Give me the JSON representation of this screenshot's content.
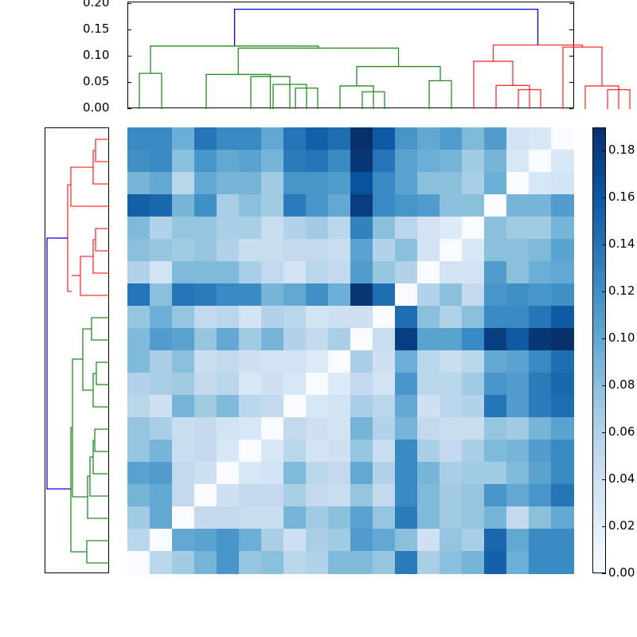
{
  "chart_data": [
    {
      "type": "heatmap",
      "title": "",
      "xlabel": "",
      "ylabel": "",
      "rows": 20,
      "cols": 20,
      "colormap": "Blues",
      "vmin": 0.0,
      "vmax": 0.19,
      "values": [
        [
          0.125,
          0.125,
          0.095,
          0.14,
          0.125,
          0.125,
          0.1,
          0.14,
          0.155,
          0.145,
          0.19,
          0.16,
          0.115,
          0.1,
          0.11,
          0.085,
          0.11,
          0.035,
          0.03,
          0.0
        ],
        [
          0.12,
          0.125,
          0.08,
          0.115,
          0.1,
          0.105,
          0.09,
          0.135,
          0.14,
          0.125,
          0.185,
          0.14,
          0.105,
          0.095,
          0.09,
          0.07,
          0.09,
          0.03,
          0.0,
          0.03
        ],
        [
          0.09,
          0.1,
          0.055,
          0.1,
          0.09,
          0.09,
          0.07,
          0.115,
          0.115,
          0.11,
          0.165,
          0.125,
          0.105,
          0.08,
          0.08,
          0.065,
          0.095,
          0.0,
          0.03,
          0.035
        ],
        [
          0.155,
          0.15,
          0.09,
          0.12,
          0.065,
          0.08,
          0.07,
          0.135,
          0.115,
          0.1,
          0.18,
          0.125,
          0.115,
          0.11,
          0.08,
          0.08,
          0.0,
          0.09,
          0.09,
          0.11
        ],
        [
          0.085,
          0.06,
          0.075,
          0.075,
          0.065,
          0.065,
          0.045,
          0.06,
          0.07,
          0.055,
          0.13,
          0.08,
          0.055,
          0.035,
          0.025,
          0.0,
          0.08,
          0.07,
          0.07,
          0.09
        ],
        [
          0.08,
          0.075,
          0.07,
          0.075,
          0.06,
          0.045,
          0.045,
          0.05,
          0.05,
          0.045,
          0.105,
          0.06,
          0.08,
          0.035,
          0.0,
          0.03,
          0.08,
          0.08,
          0.085,
          0.105
        ],
        [
          0.06,
          0.035,
          0.085,
          0.085,
          0.085,
          0.065,
          0.05,
          0.035,
          0.055,
          0.05,
          0.11,
          0.075,
          0.06,
          0.0,
          0.035,
          0.035,
          0.11,
          0.08,
          0.095,
          0.1
        ],
        [
          0.14,
          0.08,
          0.14,
          0.135,
          0.125,
          0.125,
          0.09,
          0.1,
          0.12,
          0.095,
          0.185,
          0.145,
          0.0,
          0.06,
          0.08,
          0.05,
          0.115,
          0.12,
          0.115,
          0.12
        ],
        [
          0.075,
          0.095,
          0.075,
          0.05,
          0.055,
          0.035,
          0.06,
          0.055,
          0.035,
          0.04,
          0.04,
          0.0,
          0.145,
          0.08,
          0.06,
          0.08,
          0.125,
          0.125,
          0.14,
          0.16
        ],
        [
          0.085,
          0.11,
          0.105,
          0.075,
          0.1,
          0.07,
          0.09,
          0.06,
          0.05,
          0.065,
          0.0,
          0.045,
          0.18,
          0.105,
          0.105,
          0.125,
          0.18,
          0.16,
          0.185,
          0.19
        ],
        [
          0.085,
          0.065,
          0.08,
          0.045,
          0.05,
          0.04,
          0.035,
          0.035,
          0.025,
          0.0,
          0.065,
          0.04,
          0.095,
          0.055,
          0.045,
          0.055,
          0.1,
          0.105,
          0.125,
          0.145
        ],
        [
          0.06,
          0.065,
          0.07,
          0.05,
          0.055,
          0.03,
          0.04,
          0.03,
          0.0,
          0.025,
          0.05,
          0.035,
          0.115,
          0.055,
          0.055,
          0.07,
          0.115,
          0.11,
          0.135,
          0.15
        ],
        [
          0.055,
          0.04,
          0.09,
          0.07,
          0.085,
          0.055,
          0.05,
          0.0,
          0.03,
          0.035,
          0.065,
          0.055,
          0.1,
          0.04,
          0.055,
          0.06,
          0.14,
          0.11,
          0.135,
          0.145
        ],
        [
          0.075,
          0.065,
          0.045,
          0.05,
          0.035,
          0.03,
          0.0,
          0.05,
          0.04,
          0.035,
          0.09,
          0.06,
          0.09,
          0.05,
          0.045,
          0.045,
          0.075,
          0.07,
          0.09,
          0.105
        ],
        [
          0.075,
          0.09,
          0.045,
          0.05,
          0.03,
          0.0,
          0.03,
          0.055,
          0.035,
          0.04,
          0.075,
          0.045,
          0.125,
          0.065,
          0.05,
          0.065,
          0.085,
          0.09,
          0.11,
          0.125
        ],
        [
          0.105,
          0.11,
          0.05,
          0.04,
          0.0,
          0.03,
          0.035,
          0.085,
          0.055,
          0.05,
          0.1,
          0.06,
          0.125,
          0.09,
          0.065,
          0.07,
          0.07,
          0.085,
          0.105,
          0.125
        ],
        [
          0.09,
          0.1,
          0.05,
          0.0,
          0.04,
          0.05,
          0.05,
          0.065,
          0.05,
          0.045,
          0.075,
          0.05,
          0.125,
          0.085,
          0.07,
          0.075,
          0.115,
          0.1,
          0.115,
          0.14
        ],
        [
          0.07,
          0.1,
          0.0,
          0.05,
          0.05,
          0.045,
          0.045,
          0.09,
          0.07,
          0.08,
          0.105,
          0.075,
          0.135,
          0.085,
          0.07,
          0.075,
          0.09,
          0.05,
          0.08,
          0.1
        ],
        [
          0.055,
          0.0,
          0.1,
          0.105,
          0.115,
          0.095,
          0.065,
          0.04,
          0.065,
          0.07,
          0.11,
          0.1,
          0.08,
          0.04,
          0.075,
          0.065,
          0.15,
          0.1,
          0.125,
          0.125
        ],
        [
          0.0,
          0.055,
          0.07,
          0.09,
          0.115,
          0.075,
          0.08,
          0.055,
          0.06,
          0.085,
          0.085,
          0.075,
          0.135,
          0.065,
          0.08,
          0.09,
          0.155,
          0.095,
          0.125,
          0.125
        ]
      ],
      "colorbar": {
        "ticks": [
          "0.00",
          "0.02",
          "0.04",
          "0.06",
          "0.08",
          "0.10",
          "0.12",
          "0.14",
          "0.16",
          "0.18"
        ],
        "range": [
          0.0,
          0.19
        ]
      }
    },
    {
      "type": "dendrogram",
      "orientation": "top",
      "ylim": [
        0.0,
        0.2
      ],
      "yticks": [
        "0.00",
        "0.05",
        "0.10",
        "0.15",
        "0.20"
      ],
      "leaves": 20,
      "clusters": [
        {
          "color": "#008000",
          "leaves": 12
        },
        {
          "color": "#ff0000",
          "leaves": 8
        }
      ],
      "root_height": 0.19,
      "root_color": "#0000ff",
      "links": [
        {
          "color": "green",
          "x": [
            0,
            0,
            1,
            1
          ],
          "y": [
            0,
            0.068,
            0.068,
            0
          ]
        },
        {
          "color": "green",
          "x": [
            7,
            7,
            8,
            8
          ],
          "y": [
            0,
            0.04,
            0.04,
            0
          ]
        },
        {
          "color": "green",
          "x": [
            6,
            6,
            7.5,
            7.5
          ],
          "y": [
            0,
            0.047,
            0.047,
            0
          ]
        },
        {
          "color": "green",
          "x": [
            5,
            5,
            6.75,
            6.75
          ],
          "y": [
            0,
            0.062,
            0.062,
            0
          ]
        },
        {
          "color": "green",
          "x": [
            3,
            3,
            5.875,
            5.875
          ],
          "y": [
            0,
            0.066,
            0.066,
            0
          ]
        },
        {
          "color": "green",
          "x": [
            10,
            10,
            11,
            11
          ],
          "y": [
            0,
            0.033,
            0.033,
            0
          ]
        },
        {
          "color": "green",
          "x": [
            9,
            9,
            10.5,
            10.5
          ],
          "y": [
            0,
            0.044,
            0.044,
            0
          ]
        },
        {
          "color": "green",
          "x": [
            13,
            13,
            14,
            14
          ],
          "y": [
            0,
            0.054,
            0.054,
            0
          ]
        },
        {
          "color": "green",
          "x": [
            9.75,
            9.75,
            13.5,
            13.5
          ],
          "y": [
            0.044,
            0.081,
            0.081,
            0.054
          ]
        },
        {
          "color": "green",
          "x": [
            4.4375,
            4.4375,
            11.625,
            11.625
          ],
          "y": [
            0.066,
            0.116,
            0.116,
            0.081
          ]
        },
        {
          "color": "green",
          "x": [
            0.5,
            0.5,
            8.03,
            8.03
          ],
          "y": [
            0.068,
            0.12,
            0.12,
            0.116
          ]
        },
        {
          "color": "red",
          "x": [
            17,
            17,
            18,
            18
          ],
          "y": [
            0,
            0.037,
            0.037,
            0
          ]
        },
        {
          "color": "red",
          "x": [
            16,
            16,
            17.5,
            17.5
          ],
          "y": [
            0,
            0.045,
            0.045,
            0
          ]
        },
        {
          "color": "red",
          "x": [
            15,
            15,
            16.75,
            16.75
          ],
          "y": [
            0,
            0.091,
            0.091,
            0.045
          ]
        },
        {
          "color": "red",
          "x": [
            21,
            21,
            22,
            22
          ],
          "y": [
            0,
            0.037,
            0.037,
            0
          ]
        },
        {
          "color": "red",
          "x": [
            20,
            20,
            21.5,
            21.5
          ],
          "y": [
            0,
            0.044,
            0.044,
            0
          ]
        },
        {
          "color": "red",
          "x": [
            19,
            19,
            20.75,
            20.75
          ],
          "y": [
            0,
            0.118,
            0.118,
            0.044
          ]
        },
        {
          "color": "red",
          "x": [
            15.875,
            15.875,
            19.875,
            19.875
          ],
          "y": [
            0.091,
            0.122,
            0.122,
            0.118
          ]
        },
        {
          "color": "blue",
          "x": [
            4.27,
            4.27,
            17.875,
            17.875
          ],
          "y": [
            0.12,
            0.19,
            0.19,
            0.122
          ]
        }
      ]
    },
    {
      "type": "dendrogram",
      "orientation": "left",
      "leaves": 20,
      "clusters": [
        {
          "color": "#ff0000",
          "leaves": 8
        },
        {
          "color": "#008000",
          "leaves": 12
        }
      ],
      "root_color": "#0000ff"
    }
  ]
}
